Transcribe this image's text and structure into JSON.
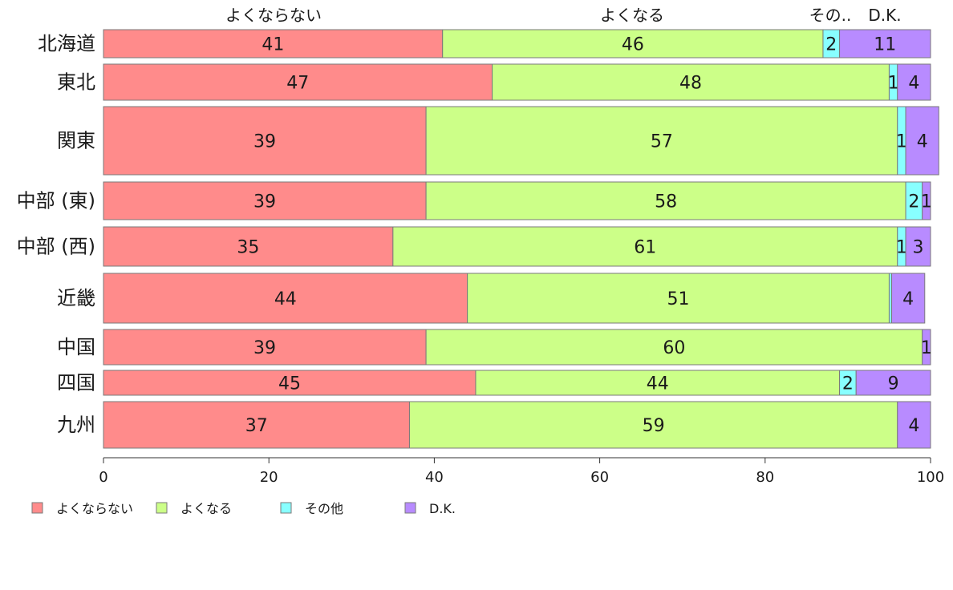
{
  "chart_data": {
    "type": "bar",
    "orientation": "horizontal",
    "stacked": true,
    "categories": [
      "北海道",
      "東北",
      "関東",
      "中部 (東)",
      "中部 (西)",
      "近畿",
      "中国",
      "四国",
      "九州"
    ],
    "series": [
      {
        "name": "よくならない",
        "color": "#ff8b8b",
        "values": [
          41,
          47,
          39,
          39,
          35,
          44,
          39,
          45,
          37
        ]
      },
      {
        "name": "よくなる",
        "color": "#ccff88",
        "values": [
          46,
          48,
          57,
          58,
          61,
          51,
          60,
          44,
          59
        ]
      },
      {
        "name": "その他",
        "color": "#88ffff",
        "values": [
          2,
          1,
          1,
          2,
          1,
          0.3,
          0,
          2,
          0
        ]
      },
      {
        "name": "D.K.",
        "color": "#b88bff",
        "values": [
          11,
          4,
          4,
          1,
          3,
          4,
          1,
          9,
          4
        ]
      }
    ],
    "top_labels": [
      "よくならない",
      "よくなる",
      "その..",
      "D.K."
    ],
    "xlim": [
      0,
      100
    ],
    "xticks": [
      "0",
      "20",
      "40",
      "60",
      "80",
      "100"
    ],
    "xlabel": "",
    "ylabel": "",
    "title": "",
    "grid": false,
    "legend": "bottom-left"
  }
}
